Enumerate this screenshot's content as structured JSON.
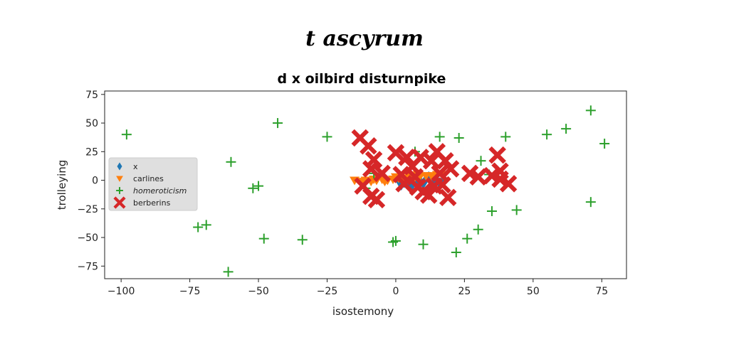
{
  "chart_data": {
    "type": "scatter",
    "suptitle": "t ascyrum",
    "title": "d x oilbird disturnpike",
    "xlabel": "isostemony",
    "ylabel": "trolleying",
    "xlim": [
      -106,
      84
    ],
    "ylim": [
      -86,
      78
    ],
    "xticks": [
      -100,
      -75,
      -50,
      -25,
      0,
      25,
      50,
      75
    ],
    "yticks": [
      -75,
      -50,
      -25,
      0,
      25,
      50,
      75
    ],
    "xtick_labels": [
      "−100",
      "−75",
      "−50",
      "−25",
      "0",
      "25",
      "50",
      "75"
    ],
    "ytick_labels": [
      "−75",
      "−50",
      "−25",
      "0",
      "25",
      "50",
      "75"
    ],
    "grid": false,
    "legend_position": "center-left",
    "series": [
      {
        "name": "x",
        "marker": "diamond",
        "color": "#1f77b4",
        "points": [
          [
            1,
            0
          ],
          [
            3,
            -2
          ],
          [
            5,
            -3
          ],
          [
            7,
            2
          ],
          [
            9,
            -1
          ],
          [
            11,
            1
          ],
          [
            13,
            -2
          ],
          [
            15,
            0
          ],
          [
            17,
            -1
          ],
          [
            2,
            -4
          ],
          [
            6,
            -4
          ],
          [
            10,
            -3
          ],
          [
            14,
            -4
          ],
          [
            16,
            -3
          ],
          [
            4,
            1
          ],
          [
            8,
            0
          ],
          [
            12,
            3
          ]
        ]
      },
      {
        "name": "carlines",
        "marker": "triangle-down",
        "color": "#ff7f0e",
        "points": [
          [
            -15,
            0
          ],
          [
            -13,
            -1
          ],
          [
            -11,
            0
          ],
          [
            -9,
            -1
          ],
          [
            -7,
            0
          ],
          [
            -5,
            1
          ],
          [
            -3,
            0
          ],
          [
            -1,
            1
          ],
          [
            1,
            2
          ],
          [
            3,
            2
          ],
          [
            5,
            3
          ],
          [
            7,
            3
          ],
          [
            9,
            4
          ],
          [
            11,
            4
          ],
          [
            13,
            4
          ],
          [
            15,
            5
          ],
          [
            17,
            5
          ],
          [
            -12,
            -2
          ],
          [
            -8,
            1
          ],
          [
            -4,
            -1
          ],
          [
            0,
            3
          ],
          [
            4,
            1
          ],
          [
            8,
            5
          ]
        ]
      },
      {
        "name": "homeroticism",
        "marker": "plus",
        "color": "#2ca02c",
        "points": [
          [
            -98,
            40
          ],
          [
            -43,
            50
          ],
          [
            -60,
            16
          ],
          [
            -25,
            38
          ],
          [
            -50,
            -5
          ],
          [
            -52,
            -7
          ],
          [
            -72,
            -41
          ],
          [
            -69,
            -39
          ],
          [
            -48,
            -51
          ],
          [
            -34,
            -52
          ],
          [
            -61,
            -80
          ],
          [
            -1,
            -54
          ],
          [
            0,
            -53
          ],
          [
            10,
            -56
          ],
          [
            22,
            -63
          ],
          [
            26,
            -51
          ],
          [
            30,
            -43
          ],
          [
            35,
            -27
          ],
          [
            44,
            -26
          ],
          [
            71,
            -19
          ],
          [
            16,
            38
          ],
          [
            23,
            37
          ],
          [
            40,
            38
          ],
          [
            55,
            40
          ],
          [
            62,
            45
          ],
          [
            71,
            61
          ],
          [
            76,
            32
          ],
          [
            31,
            17
          ],
          [
            34,
            5
          ],
          [
            -11,
            -7
          ],
          [
            -8,
            6
          ],
          [
            7,
            25
          ]
        ]
      },
      {
        "name": "berberins",
        "marker": "x-filled",
        "color": "#d62728",
        "points": [
          [
            -13,
            37
          ],
          [
            -10,
            30
          ],
          [
            -8,
            18
          ],
          [
            -9,
            10
          ],
          [
            -5,
            6
          ],
          [
            -12,
            -5
          ],
          [
            -9,
            -14
          ],
          [
            -7,
            -17
          ],
          [
            0,
            24
          ],
          [
            4,
            20
          ],
          [
            6,
            12
          ],
          [
            2,
            5
          ],
          [
            3,
            -3
          ],
          [
            8,
            -6
          ],
          [
            10,
            -10
          ],
          [
            9,
            20
          ],
          [
            13,
            17
          ],
          [
            15,
            25
          ],
          [
            18,
            17
          ],
          [
            20,
            10
          ],
          [
            16,
            6
          ],
          [
            14,
            -5
          ],
          [
            17,
            -4
          ],
          [
            19,
            -15
          ],
          [
            27,
            6
          ],
          [
            30,
            3
          ],
          [
            35,
            4
          ],
          [
            38,
            1
          ],
          [
            38,
            8
          ],
          [
            37,
            22
          ],
          [
            41,
            -3
          ],
          [
            12,
            -13
          ],
          [
            7,
            3
          ]
        ]
      }
    ]
  }
}
